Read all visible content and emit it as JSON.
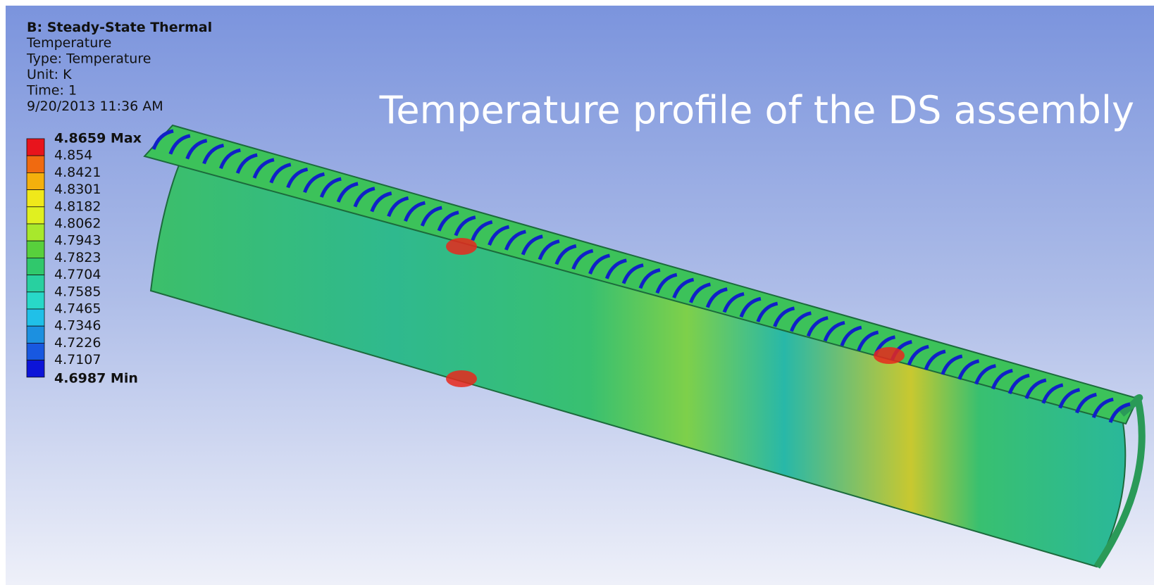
{
  "header": {
    "title": "B: Steady-State Thermal",
    "lines": [
      "Temperature",
      "Type: Temperature",
      "Unit: K",
      "Time: 1",
      "9/20/2013 11:36 AM"
    ]
  },
  "caption": "Temperature profile of the DS assembly",
  "legend": {
    "labels": [
      "4.8659 Max",
      "4.854",
      "4.8421",
      "4.8301",
      "4.8182",
      "4.8062",
      "4.7943",
      "4.7823",
      "4.7704",
      "4.7585",
      "4.7465",
      "4.7346",
      "4.7226",
      "4.7107",
      "4.6987 Min"
    ],
    "colors": [
      "#e8141c",
      "#f06a10",
      "#f4b00c",
      "#f0e81a",
      "#e0f020",
      "#a8e82c",
      "#58d03c",
      "#30c86c",
      "#28d0a0",
      "#28d8c8",
      "#20c0e8",
      "#1c90e0",
      "#1858e0",
      "#0c14d8"
    ]
  }
}
